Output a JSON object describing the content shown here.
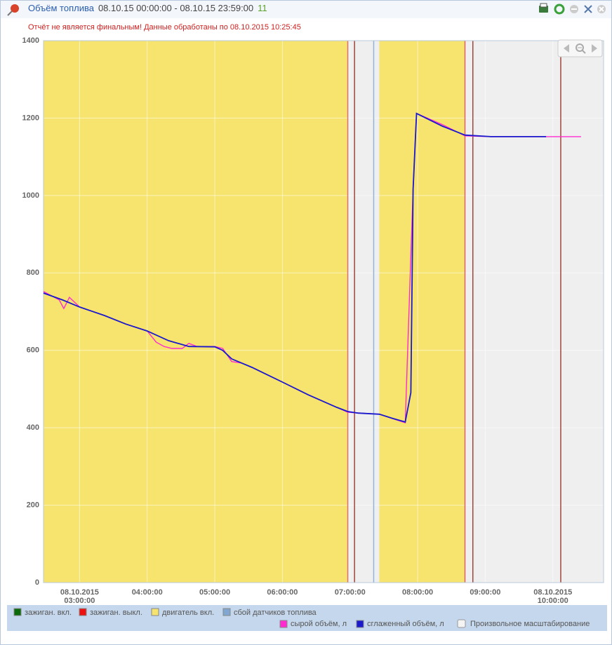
{
  "header": {
    "title": "Объём топлива",
    "period": "08.10.15 00:00:00 - 08.10.15 23:59:00",
    "count": "11"
  },
  "notice": "Отчёт не является финальным! Данные обработаны по 08.10.2015 10:25:45",
  "chart_data": {
    "type": "line",
    "xlim": [
      "02:28",
      "10:45"
    ],
    "xticks": [
      {
        "value": "03:00:00",
        "label": "08.10.2015\n03:00:00"
      },
      "04:00:00",
      "05:00:00",
      "06:00:00",
      "07:00:00",
      "08:00:00",
      "09:00:00",
      {
        "value": "10:00:00",
        "label": "08.10.2015\n10:00:00"
      }
    ],
    "ylim": [
      0,
      1400
    ],
    "yticks": [
      0,
      200,
      400,
      600,
      800,
      1000,
      1200,
      1400
    ],
    "grid": true,
    "background": "#efefef",
    "bands": [
      {
        "from": "02:28",
        "to": "06:58",
        "color": "#f6e46e"
      },
      {
        "from": "07:26",
        "to": "08:42",
        "color": "#f6e46e"
      }
    ],
    "markers": [
      {
        "x": "06:58",
        "color": "#e07070"
      },
      {
        "x": "07:04",
        "color": "#a0463c"
      },
      {
        "x": "07:21",
        "color": "#8fb4d6"
      },
      {
        "x": "08:42",
        "color": "#e06060"
      },
      {
        "x": "08:49",
        "color": "#a0463c"
      },
      {
        "x": "10:07",
        "color": "#a0463c"
      }
    ],
    "legend": [
      {
        "name": "зажиган. вкл.",
        "color": "#0b6b0b"
      },
      {
        "name": "зажиган. выкл.",
        "color": "#ee1111"
      },
      {
        "name": "двигатель вкл.",
        "color": "#f6e46e"
      },
      {
        "name": "сбой датчиков топлива",
        "color": "#7fa7d1"
      }
    ],
    "series": [
      {
        "name": "сырой объём, л",
        "color": "#ff2bd0",
        "x": [
          "02:28",
          "02:42",
          "02:46",
          "02:51",
          "03:00",
          "03:22",
          "03:41",
          "04:00",
          "04:08",
          "04:15",
          "04:22",
          "04:31",
          "04:37",
          "04:44",
          "05:00",
          "05:07",
          "05:15",
          "05:24",
          "05:33",
          "06:00",
          "06:23",
          "06:48",
          "06:58",
          "07:26",
          "07:49",
          "07:56",
          "07:59",
          "08:22",
          "08:42",
          "09:05",
          "10:25"
        ],
        "values": [
          752,
          730,
          708,
          737,
          712,
          690,
          668,
          650,
          621,
          610,
          605,
          605,
          618,
          610,
          610,
          605,
          571,
          567,
          556,
          518,
          485,
          453,
          440,
          435,
          413,
          1016,
          1212,
          1183,
          1154,
          1152,
          1152
        ]
      },
      {
        "name": "сглаженный объём, л",
        "color": "#1a1acc",
        "x": [
          "02:28",
          "02:45",
          "03:00",
          "03:22",
          "03:41",
          "04:00",
          "04:19",
          "04:37",
          "05:00",
          "05:07",
          "05:15",
          "05:33",
          "06:00",
          "06:23",
          "06:48",
          "06:58",
          "07:07",
          "07:26",
          "07:38",
          "07:49",
          "07:54",
          "07:56",
          "07:59",
          "08:22",
          "08:42",
          "09:05",
          "09:54"
        ],
        "values": [
          748,
          730,
          712,
          690,
          668,
          650,
          625,
          610,
          609,
          600,
          578,
          556,
          518,
          485,
          453,
          442,
          438,
          435,
          424,
          415,
          491,
          1016,
          1212,
          1179,
          1156,
          1152,
          1152
        ]
      }
    ],
    "scale_option": "Произвольное масштабирование"
  }
}
